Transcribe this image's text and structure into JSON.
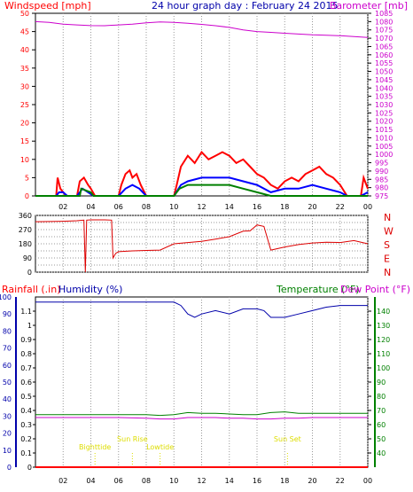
{
  "colors": {
    "wind_speed": "#ff0000",
    "wind_avg": "#0000ff",
    "wind_calm": "#008000",
    "barometer": "#cc00cc",
    "wind_direction": "#dd0000",
    "rainfall": "#ff0000",
    "humidity": "#0000aa",
    "temperature": "#008000",
    "dew_point": "#cc00cc",
    "tide_markers": "#dddd00",
    "axis": "#000000",
    "grid": "#999999"
  },
  "chart_data": [
    {
      "type": "line",
      "title": "24 hour graph day : February 24 2015",
      "ylabel": "Windspeed [mph]",
      "ylabel_right": "Barometer [mb]",
      "x_ticks": [
        "02",
        "04",
        "06",
        "08",
        "10",
        "12",
        "14",
        "16",
        "18",
        "20",
        "22",
        "00"
      ],
      "x_range": [
        0,
        24
      ],
      "ylim": [
        0,
        50
      ],
      "yticks": [
        0,
        5,
        10,
        15,
        20,
        25,
        30,
        35,
        40,
        45,
        50
      ],
      "ylim_right": [
        975,
        1085
      ],
      "yticks_right": [
        975,
        980,
        985,
        990,
        995,
        1000,
        1005,
        1010,
        1015,
        1020,
        1025,
        1030,
        1035,
        1040,
        1045,
        1050,
        1055,
        1060,
        1065,
        1070,
        1075,
        1080,
        1085
      ],
      "grid": true,
      "series": [
        {
          "name": "Windspeed",
          "axis": "left",
          "points": [
            [
              0,
              0
            ],
            [
              1.5,
              0
            ],
            [
              1.6,
              5
            ],
            [
              1.8,
              2
            ],
            [
              2,
              1
            ],
            [
              2.2,
              0
            ],
            [
              3,
              0
            ],
            [
              3.2,
              4
            ],
            [
              3.5,
              5
            ],
            [
              3.8,
              3
            ],
            [
              4,
              2
            ],
            [
              4.3,
              0
            ],
            [
              6,
              0
            ],
            [
              6.2,
              3
            ],
            [
              6.5,
              6
            ],
            [
              6.8,
              7
            ],
            [
              7.0,
              5
            ],
            [
              7.3,
              6
            ],
            [
              7.6,
              3
            ],
            [
              8,
              0
            ],
            [
              10,
              0
            ],
            [
              10.2,
              3
            ],
            [
              10.5,
              8
            ],
            [
              11,
              11
            ],
            [
              11.5,
              9
            ],
            [
              12,
              12
            ],
            [
              12.5,
              10
            ],
            [
              13,
              11
            ],
            [
              13.5,
              12
            ],
            [
              14,
              11
            ],
            [
              14.5,
              9
            ],
            [
              15,
              10
            ],
            [
              15.5,
              8
            ],
            [
              16,
              6
            ],
            [
              16.5,
              5
            ],
            [
              17,
              3
            ],
            [
              17.5,
              2
            ],
            [
              18,
              4
            ],
            [
              18.5,
              5
            ],
            [
              19,
              4
            ],
            [
              19.5,
              6
            ],
            [
              20,
              7
            ],
            [
              20.5,
              8
            ],
            [
              21,
              6
            ],
            [
              21.5,
              5
            ],
            [
              22,
              3
            ],
            [
              22.5,
              0
            ],
            [
              23.5,
              0
            ],
            [
              23.7,
              5
            ],
            [
              24,
              2
            ]
          ]
        },
        {
          "name": "Wind average",
          "axis": "left",
          "points": [
            [
              0,
              0
            ],
            [
              1.5,
              0
            ],
            [
              1.7,
              1
            ],
            [
              2,
              1
            ],
            [
              2.3,
              0
            ],
            [
              3,
              0
            ],
            [
              3.4,
              2
            ],
            [
              3.8,
              1
            ],
            [
              4.2,
              0
            ],
            [
              6,
              0
            ],
            [
              6.5,
              2
            ],
            [
              7,
              3
            ],
            [
              7.5,
              2
            ],
            [
              8,
              0
            ],
            [
              10,
              0
            ],
            [
              10.5,
              3
            ],
            [
              11,
              4
            ],
            [
              12,
              5
            ],
            [
              13,
              5
            ],
            [
              14,
              5
            ],
            [
              15,
              4
            ],
            [
              16,
              3
            ],
            [
              17,
              1
            ],
            [
              18,
              2
            ],
            [
              19,
              2
            ],
            [
              20,
              3
            ],
            [
              21,
              2
            ],
            [
              22,
              1
            ],
            [
              22.5,
              0
            ],
            [
              23.5,
              0
            ],
            [
              24,
              1
            ]
          ]
        },
        {
          "name": "Calm",
          "axis": "left",
          "points": [
            [
              0,
              0
            ],
            [
              3.2,
              0
            ],
            [
              3.3,
              2
            ],
            [
              4,
              1
            ],
            [
              4.2,
              0
            ],
            [
              10,
              0
            ],
            [
              10.4,
              2
            ],
            [
              11,
              3
            ],
            [
              12,
              3
            ],
            [
              13,
              3
            ],
            [
              14,
              3
            ],
            [
              15,
              2
            ],
            [
              16,
              1
            ],
            [
              17,
              0
            ],
            [
              24,
              0
            ]
          ]
        },
        {
          "name": "Barometer",
          "axis": "right",
          "points": [
            [
              0,
              1080
            ],
            [
              1,
              1079.5
            ],
            [
              2,
              1078.5
            ],
            [
              3,
              1078
            ],
            [
              4,
              1077.6
            ],
            [
              5,
              1077.5
            ],
            [
              6,
              1078
            ],
            [
              7,
              1078.5
            ],
            [
              8,
              1079.3
            ],
            [
              9,
              1079.8
            ],
            [
              10,
              1079.5
            ],
            [
              11,
              1079
            ],
            [
              12,
              1078.3
            ],
            [
              13,
              1077.5
            ],
            [
              14,
              1076.5
            ],
            [
              15,
              1075
            ],
            [
              16,
              1074
            ],
            [
              17,
              1073.5
            ],
            [
              18,
              1073
            ],
            [
              19,
              1072.5
            ],
            [
              20,
              1072
            ],
            [
              21,
              1071.8
            ],
            [
              22,
              1071.5
            ],
            [
              23,
              1071
            ],
            [
              24,
              1070.5
            ]
          ]
        }
      ]
    },
    {
      "type": "line",
      "x_range": [
        0,
        24
      ],
      "ylim": [
        0,
        360
      ],
      "yticks": [
        0,
        45,
        90,
        135,
        180,
        225,
        270,
        315,
        360
      ],
      "ytick_labels": [
        "0",
        "",
        "90",
        "",
        "180",
        "",
        "270",
        "",
        "360"
      ],
      "right_labels": [
        "N",
        "W",
        "S",
        "E",
        "N"
      ],
      "grid": true,
      "series": [
        {
          "name": "Wind direction",
          "points": [
            [
              0,
              320
            ],
            [
              1,
              321
            ],
            [
              2,
              323
            ],
            [
              3,
              326
            ],
            [
              3.5,
              330
            ],
            [
              3.6,
              0
            ],
            [
              3.7,
              330
            ],
            [
              4,
              332
            ],
            [
              5,
              332
            ],
            [
              5.5,
              330
            ],
            [
              5.6,
              90
            ],
            [
              5.8,
              120
            ],
            [
              6,
              130
            ],
            [
              7,
              135
            ],
            [
              8,
              138
            ],
            [
              9,
              140
            ],
            [
              10,
              180
            ],
            [
              11,
              188
            ],
            [
              12,
              195
            ],
            [
              13,
              210
            ],
            [
              14,
              225
            ],
            [
              15,
              260
            ],
            [
              15.5,
              262
            ],
            [
              16,
              300
            ],
            [
              16.5,
              290
            ],
            [
              17,
              140
            ],
            [
              18,
              160
            ],
            [
              19,
              175
            ],
            [
              20,
              185
            ],
            [
              21,
              190
            ],
            [
              22,
              188
            ],
            [
              23,
              200
            ],
            [
              24,
              180
            ]
          ]
        }
      ]
    },
    {
      "type": "line",
      "labels": [
        "Rainfall (.in)",
        "Humidity (%)",
        "Temperature (°F)",
        "Dew Point (°F)"
      ],
      "x_ticks": [
        "02",
        "04",
        "06",
        "08",
        "10",
        "12",
        "14",
        "16",
        "18",
        "20",
        "22",
        "00"
      ],
      "x_range": [
        0,
        24
      ],
      "ylim": [
        0,
        1.2
      ],
      "yticks": [
        0,
        0.1,
        0.2,
        0.3,
        0.4,
        0.5,
        0.6,
        0.7,
        0.8,
        0.9,
        1,
        1.1
      ],
      "ytick_labels": [
        "0",
        "0.1",
        "0.2",
        "0.3",
        "0.4",
        "0.5",
        "0.6",
        "0.7",
        "0.8",
        "0.9",
        "1",
        "1.1"
      ],
      "ylim_humidity": [
        0,
        100
      ],
      "yticks_humidity": [
        0,
        10,
        20,
        30,
        40,
        50,
        60,
        70,
        80,
        90,
        100
      ],
      "ylim_right": [
        30,
        150
      ],
      "yticks_right": [
        40,
        50,
        60,
        70,
        80,
        90,
        100,
        110,
        120,
        130,
        140
      ],
      "grid": true,
      "annotations": [
        {
          "label": "Bighttide",
          "x": 4.3
        },
        {
          "label": "Sun Rise",
          "x": 7.0
        },
        {
          "label": "Lowtide",
          "x": 9.0
        },
        {
          "label": "Sun Set",
          "x": 18.2
        }
      ],
      "series": [
        {
          "name": "Rainfall",
          "axis": "left",
          "points": [
            [
              0,
              0
            ],
            [
              24,
              0
            ]
          ]
        },
        {
          "name": "Humidity",
          "axis": "humidity",
          "points": [
            [
              0,
              97
            ],
            [
              5,
              97
            ],
            [
              8,
              97
            ],
            [
              9.5,
              97
            ],
            [
              10,
              97
            ],
            [
              10.5,
              95
            ],
            [
              11,
              90
            ],
            [
              11.5,
              88
            ],
            [
              12,
              90
            ],
            [
              13,
              92
            ],
            [
              14,
              90
            ],
            [
              15,
              93
            ],
            [
              16,
              93
            ],
            [
              16.5,
              92
            ],
            [
              17,
              88
            ],
            [
              18,
              88
            ],
            [
              19,
              90
            ],
            [
              20,
              92
            ],
            [
              21,
              94
            ],
            [
              22,
              95
            ],
            [
              23,
              95
            ],
            [
              24,
              95
            ]
          ]
        },
        {
          "name": "Temperature",
          "axis": "right",
          "points": [
            [
              0,
              67
            ],
            [
              3,
              67
            ],
            [
              6,
              67
            ],
            [
              8,
              67
            ],
            [
              9,
              66.5
            ],
            [
              10,
              67
            ],
            [
              11,
              68.5
            ],
            [
              12,
              68
            ],
            [
              13,
              68
            ],
            [
              14,
              67.5
            ],
            [
              15,
              67
            ],
            [
              16,
              67
            ],
            [
              17,
              68.5
            ],
            [
              18,
              69
            ],
            [
              19,
              68
            ],
            [
              20,
              68
            ],
            [
              21,
              68
            ],
            [
              22,
              68
            ],
            [
              23,
              68
            ],
            [
              24,
              68
            ]
          ]
        },
        {
          "name": "Dew point",
          "axis": "right",
          "points": [
            [
              0,
              65
            ],
            [
              3,
              65
            ],
            [
              6,
              65
            ],
            [
              8,
              64.5
            ],
            [
              9,
              64
            ],
            [
              10,
              64
            ],
            [
              11,
              65
            ],
            [
              12,
              65
            ],
            [
              13,
              65
            ],
            [
              14,
              64.5
            ],
            [
              15,
              64.5
            ],
            [
              16,
              64
            ],
            [
              17,
              64
            ],
            [
              18,
              64.5
            ],
            [
              19,
              64.5
            ],
            [
              20,
              65
            ],
            [
              21,
              65
            ],
            [
              22,
              65
            ],
            [
              23,
              65
            ],
            [
              24,
              65
            ]
          ]
        }
      ]
    }
  ]
}
